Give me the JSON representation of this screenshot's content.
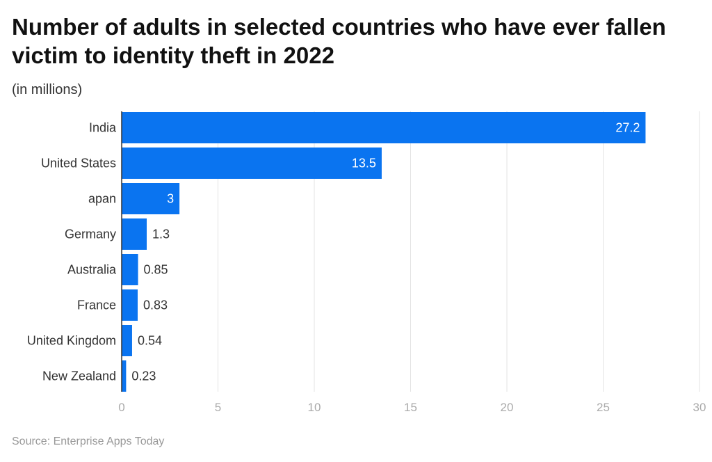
{
  "chart_data": {
    "type": "bar",
    "orientation": "horizontal",
    "title": "Number of adults in selected countries who have ever fallen victim to identity theft in 2022",
    "subtitle": "(in millions)",
    "categories": [
      "India",
      "United States",
      "apan",
      "Germany",
      "Australia",
      "France",
      "United Kingdom",
      "New Zealand"
    ],
    "values": [
      27.2,
      13.5,
      3,
      1.3,
      0.85,
      0.83,
      0.54,
      0.23
    ],
    "value_labels": [
      "27.2",
      "13.5",
      "3",
      "1.3",
      "0.85",
      "0.83",
      "0.54",
      "0.23"
    ],
    "xlim": [
      0,
      30
    ],
    "xticks": [
      "0",
      "5",
      "10",
      "15",
      "20",
      "25",
      "30"
    ],
    "grid": true,
    "bar_color": "#0a74f0",
    "source": "Source: Enterprise Apps Today"
  }
}
